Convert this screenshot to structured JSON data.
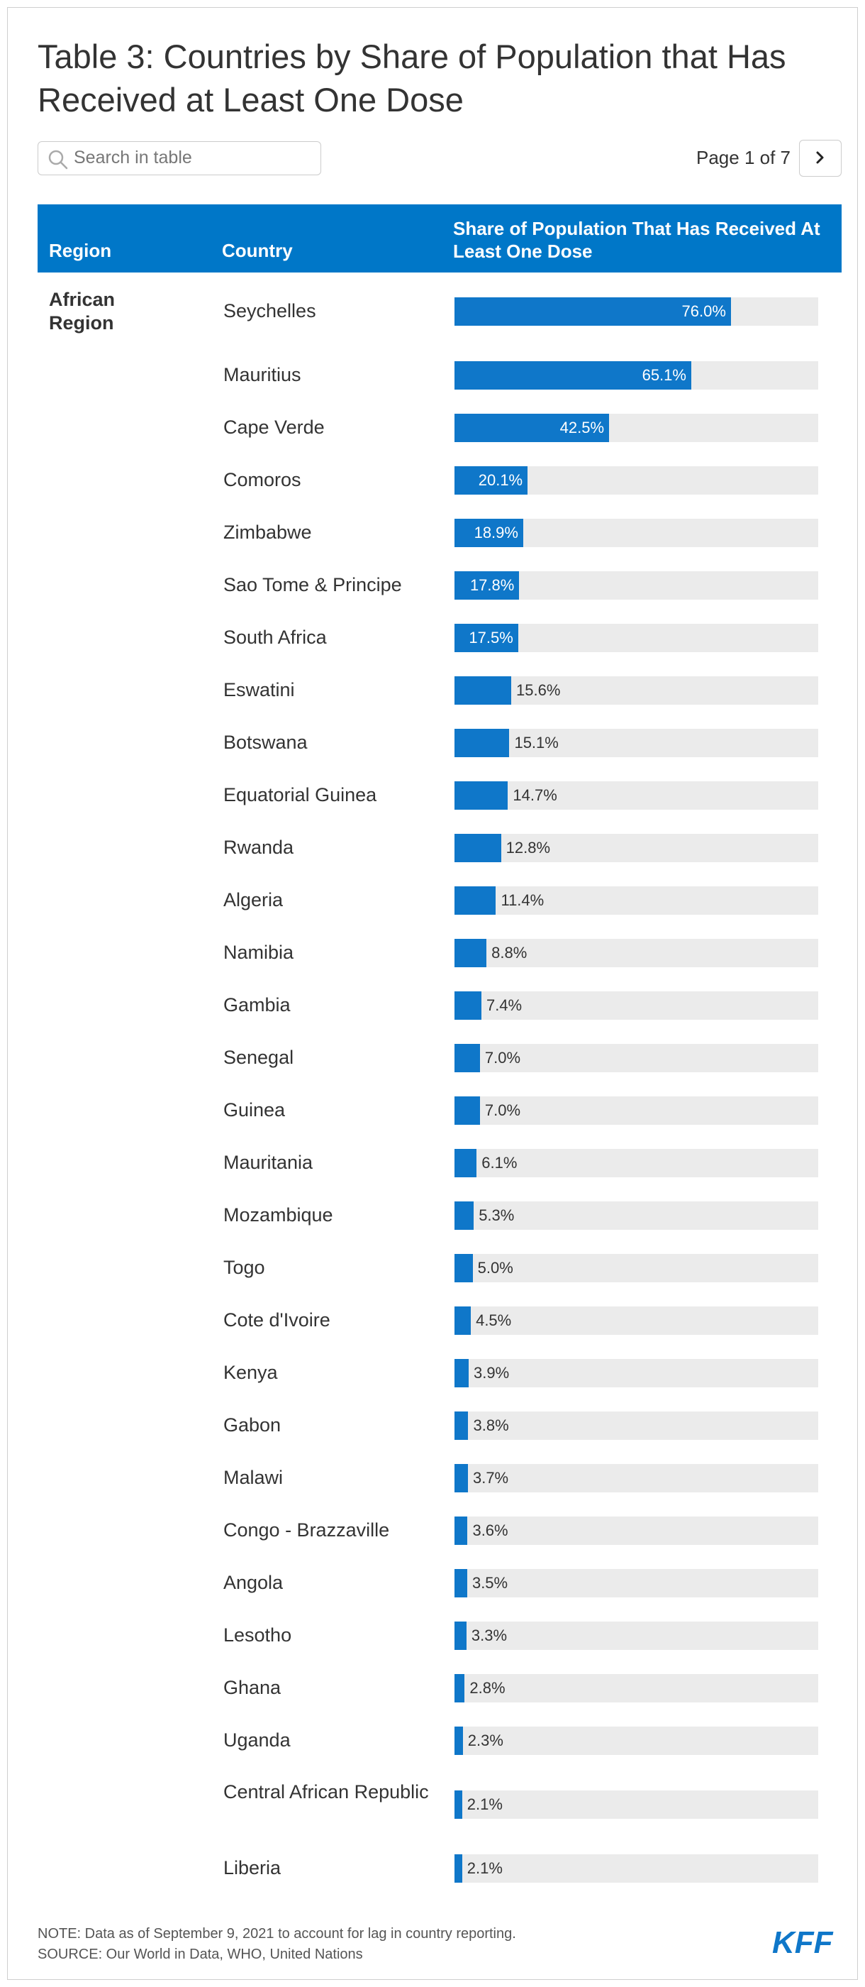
{
  "title": "Table 3: Countries by Share of Population that Has Received at Least One Dose",
  "search": {
    "placeholder": "Search in table",
    "icon": "search-icon"
  },
  "pagination": {
    "label": "Page 1 of 7",
    "next_icon": "chevron-right-icon"
  },
  "colors": {
    "header_bg": "#0077c8",
    "bar": "#0f77c9",
    "bar_track": "#ebebeb",
    "logo": "#0f77c9"
  },
  "table": {
    "columns": [
      "Region",
      "Country",
      "Share of Population That Has Received At Least One Dose"
    ],
    "region": "African Region"
  },
  "chart_data": {
    "type": "bar",
    "orientation": "horizontal",
    "title": "Table 3: Countries by Share of Population that Has Received at Least One Dose",
    "xlim": [
      0,
      100
    ],
    "categories": [
      "Seychelles",
      "Mauritius",
      "Cape Verde",
      "Comoros",
      "Zimbabwe",
      "Sao Tome & Principe",
      "South Africa",
      "Eswatini",
      "Botswana",
      "Equatorial Guinea",
      "Rwanda",
      "Algeria",
      "Namibia",
      "Gambia",
      "Senegal",
      "Guinea",
      "Mauritania",
      "Mozambique",
      "Togo",
      "Cote d'Ivoire",
      "Kenya",
      "Gabon",
      "Malawi",
      "Congo - Brazzaville",
      "Angola",
      "Lesotho",
      "Ghana",
      "Uganda",
      "Central African Republic",
      "Liberia"
    ],
    "values": [
      76.0,
      65.1,
      42.5,
      20.1,
      18.9,
      17.8,
      17.5,
      15.6,
      15.1,
      14.7,
      12.8,
      11.4,
      8.8,
      7.4,
      7.0,
      7.0,
      6.1,
      5.3,
      5.0,
      4.5,
      3.9,
      3.8,
      3.7,
      3.6,
      3.5,
      3.3,
      2.8,
      2.3,
      2.1,
      2.1
    ],
    "labels": [
      "76.0%",
      "65.1%",
      "42.5%",
      "20.1%",
      "18.9%",
      "17.8%",
      "17.5%",
      "15.6%",
      "15.1%",
      "14.7%",
      "12.8%",
      "11.4%",
      "8.8%",
      "7.4%",
      "7.0%",
      "7.0%",
      "6.1%",
      "5.3%",
      "5.0%",
      "4.5%",
      "3.9%",
      "3.8%",
      "3.7%",
      "3.6%",
      "3.5%",
      "3.3%",
      "2.8%",
      "2.3%",
      "2.1%",
      "2.1%"
    ]
  },
  "footer": {
    "note": "NOTE: Data as of September 9, 2021 to account for lag in country reporting.",
    "source": "SOURCE: Our World in Data, WHO, United Nations",
    "logo_text": "KFF"
  }
}
